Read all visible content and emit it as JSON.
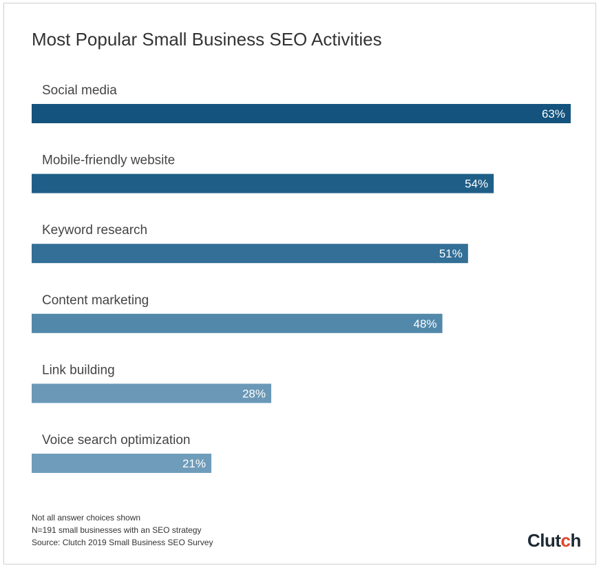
{
  "chart_data": {
    "type": "bar",
    "orientation": "horizontal",
    "title": "Most Popular Small Business SEO Activities",
    "categories": [
      "Social media",
      "Mobile-friendly website",
      "Keyword research",
      "Content marketing",
      "Link building",
      "Voice search optimization"
    ],
    "values": [
      63,
      54,
      51,
      48,
      28,
      21
    ],
    "value_labels": [
      "63%",
      "54%",
      "51%",
      "48%",
      "28%",
      "21%"
    ],
    "unit": "%",
    "xlim": [
      0,
      63
    ],
    "grid": false,
    "legend": "none",
    "bar_colors": [
      "#14537d",
      "#1f5f87",
      "#336f96",
      "#5289ab",
      "#6a98b6",
      "#6f9cba"
    ]
  },
  "footnotes": [
    "Not all answer choices shown",
    "N=191 small businesses with an SEO strategy",
    "Source: Clutch 2019 Small Business SEO Survey"
  ],
  "brand": {
    "before": "Clut",
    "accent": "c",
    "after": "h",
    "accent_color": "#e0442a"
  }
}
